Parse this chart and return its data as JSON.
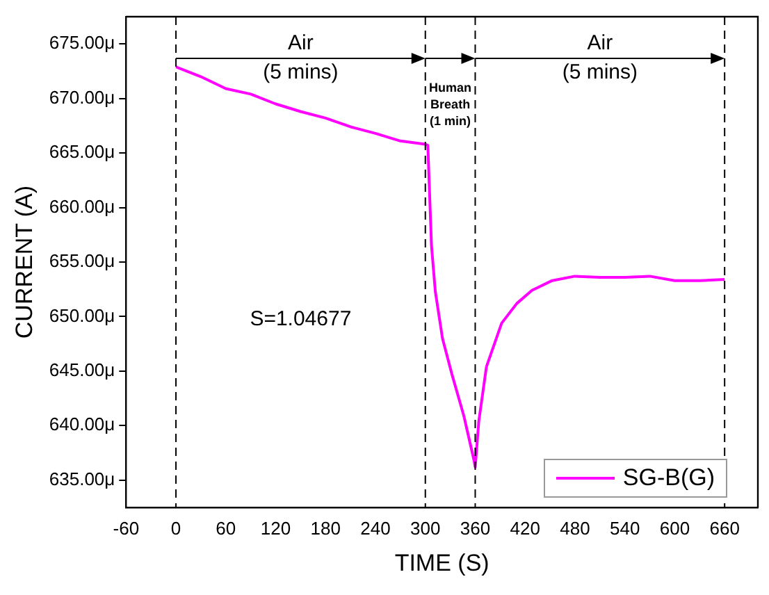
{
  "chart_data": {
    "type": "line",
    "xlabel": "TIME (S)",
    "ylabel": "CURRENT (A)",
    "xlim": [
      -60,
      700
    ],
    "xticks": [
      -60,
      0,
      60,
      120,
      180,
      240,
      300,
      360,
      420,
      480,
      540,
      600,
      660
    ],
    "ylim": [
      632.5,
      677.5
    ],
    "yticks": [
      {
        "value": 635,
        "label": "635.00μ"
      },
      {
        "value": 640,
        "label": "640.00μ"
      },
      {
        "value": 645,
        "label": "645.00μ"
      },
      {
        "value": 650,
        "label": "650.00μ"
      },
      {
        "value": 655,
        "label": "655.00μ"
      },
      {
        "value": 660,
        "label": "660.00μ"
      },
      {
        "value": 665,
        "label": "665.00μ"
      },
      {
        "value": 670,
        "label": "670.00μ"
      },
      {
        "value": 675,
        "label": "675.00μ"
      }
    ],
    "grid": false,
    "legend": "bottom right",
    "marker": "none",
    "line_style": "solid",
    "ref_lines": [
      {
        "axis": "x",
        "value": 0,
        "line_style": "dashed",
        "color": "#000000"
      },
      {
        "axis": "x",
        "value": 300,
        "line_style": "dashed",
        "color": "#000000"
      },
      {
        "axis": "x",
        "value": 360,
        "line_style": "dashed",
        "color": "#000000"
      },
      {
        "axis": "x",
        "value": 660,
        "line_style": "dashed",
        "color": "#000000"
      }
    ],
    "annotations": [
      "Air\n(5 mins)",
      "Human\nBreath\n(1 min)",
      "Air\n(5 mins)",
      "S=1.04677"
    ],
    "series": [
      {
        "name": "SG-B(G)",
        "color": "#ff00ff",
        "x": [
          0,
          30,
          60,
          90,
          120,
          150,
          180,
          210,
          240,
          270,
          300,
          303,
          305,
          307.4,
          312,
          320.6,
          332,
          346.3,
          358.3,
          360,
          364.3,
          373.5,
          391.8,
          410,
          428.2,
          452.6,
          479.8,
          510,
          540,
          570,
          600,
          630,
          660
        ],
        "values": [
          672.9,
          672.0,
          670.9,
          670.4,
          669.5,
          668.8,
          668.2,
          667.4,
          666.8,
          666.1,
          665.8,
          665.7,
          661.5,
          656.5,
          652.3,
          648.0,
          644.7,
          640.9,
          636.9,
          636.2,
          640.4,
          645.4,
          649.4,
          651.2,
          652.4,
          653.3,
          653.7,
          653.6,
          653.6,
          653.7,
          653.3,
          653.3,
          653.4
        ]
      }
    ]
  }
}
